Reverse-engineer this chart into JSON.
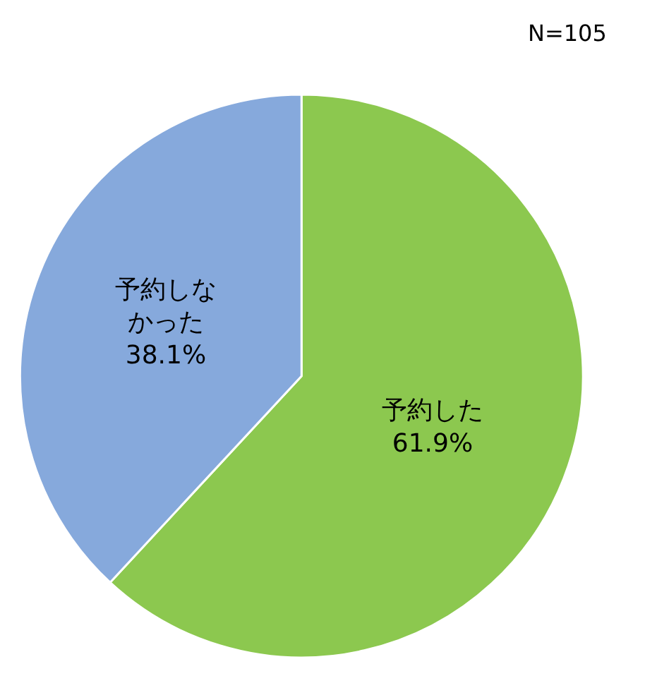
{
  "chart_data": {
    "type": "pie",
    "categories": [
      "予約した",
      "予約しなかった"
    ],
    "values": [
      61.9,
      38.1
    ],
    "value_labels": [
      "61.9%",
      "38.1%"
    ],
    "colors": [
      "#8cc84f",
      "#86a9dc"
    ],
    "annotations": [
      "N=105"
    ],
    "legend": false
  }
}
